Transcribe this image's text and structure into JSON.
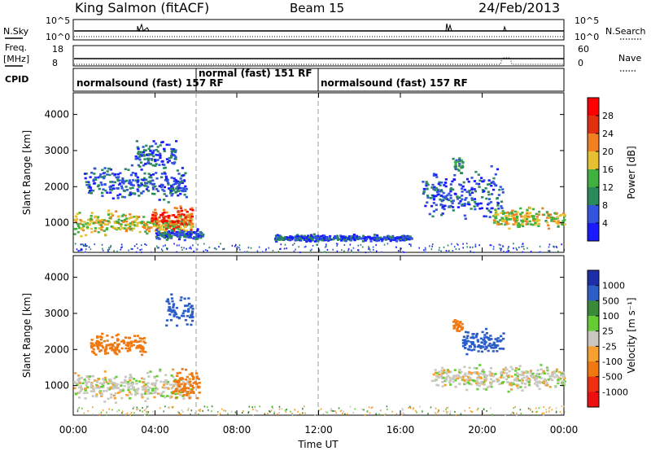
{
  "header": {
    "station": "King Salmon (fitACF)",
    "beam": "Beam 15",
    "date": "24/Feb/2013"
  },
  "side_labels": {
    "nsky": "N.Sky",
    "freq_line1": "Freq.",
    "freq_line2": "[MHz]",
    "cpid": "CPID",
    "nsearch": "N.Search",
    "nave": "Nave"
  },
  "mini_panels": {
    "noise_ticks_left": [
      "10^5",
      "10^0"
    ],
    "noise_ticks_right": [
      "10^5",
      "10^0"
    ],
    "freq_ticks": [
      "18",
      "8"
    ],
    "nave_ticks": [
      "60",
      "0"
    ],
    "cpid_segments": [
      {
        "label": "normalsound (fast) 157 RF",
        "start_h": 0,
        "end_h": 6.0
      },
      {
        "label": "normal (fast) 151 RF",
        "start_h": 6.0,
        "end_h": 12.0
      },
      {
        "label": "normalsound (fast) 157 RF",
        "start_h": 12.0,
        "end_h": 24.0
      }
    ]
  },
  "axes": {
    "ylabel": "Slant Range [km]",
    "yticks": [
      "1000",
      "2000",
      "3000",
      "4000"
    ],
    "xlabel": "Time UT",
    "xticks": [
      "00:00",
      "04:00",
      "08:00",
      "12:00",
      "16:00",
      "20:00",
      "00:00"
    ]
  },
  "colorbars": {
    "power": {
      "label": "Power [dB]",
      "ticks": [
        "4",
        "8",
        "12",
        "16",
        "20",
        "24",
        "28"
      ],
      "colors": [
        "#1a1aff",
        "#3355dd",
        "#2a8a5a",
        "#40b040",
        "#e6c030",
        "#f08020",
        "#e03010",
        "#ff0000"
      ]
    },
    "velocity": {
      "label": "Velocity [m s⁻¹]",
      "ticks": [
        "1000",
        "500",
        "100",
        "25",
        "-25",
        "-100",
        "-500",
        "-1000"
      ],
      "colors": [
        "#1e2ea8",
        "#2c5ec8",
        "#3a8a3a",
        "#66cc33",
        "#c8c8c0",
        "#f5a030",
        "#f07810",
        "#ee3010",
        "#ee1010"
      ]
    }
  },
  "chart_data": [
    {
      "type": "heatmap",
      "title": "Power [dB]",
      "xlabel": "Time UT",
      "ylabel": "Slant Range [km]",
      "xlim": [
        0,
        24
      ],
      "ylim": [
        180,
        4600
      ],
      "colorbar_range": [
        0,
        30
      ],
      "regions": [
        {
          "t_start": 0.0,
          "t_end": 5.8,
          "r_center": 1000,
          "r_width": 350,
          "power": 16
        },
        {
          "t_start": 3.8,
          "t_end": 5.8,
          "r_center": 1150,
          "r_width": 400,
          "power": 24
        },
        {
          "t_start": 0.5,
          "t_end": 5.5,
          "r_center": 2100,
          "r_width": 500,
          "power": 6
        },
        {
          "t_start": 3.0,
          "t_end": 5.0,
          "r_center": 2900,
          "r_width": 400,
          "power": 6
        },
        {
          "t_start": 4.0,
          "t_end": 6.3,
          "r_center": 700,
          "r_width": 150,
          "power": 6
        },
        {
          "t_start": 9.8,
          "t_end": 16.5,
          "r_center": 600,
          "r_width": 100,
          "power": 5
        },
        {
          "t_start": 17.0,
          "t_end": 21.0,
          "r_center": 1800,
          "r_width": 700,
          "power": 6
        },
        {
          "t_start": 18.5,
          "t_end": 19.0,
          "r_center": 2600,
          "r_width": 300,
          "power": 10
        },
        {
          "t_start": 20.5,
          "t_end": 24.0,
          "r_center": 1150,
          "r_width": 300,
          "power": 16
        }
      ]
    },
    {
      "type": "heatmap",
      "title": "Velocity [m s⁻¹]",
      "xlabel": "Time UT",
      "ylabel": "Slant Range [km]",
      "xlim": [
        0,
        24
      ],
      "ylim": [
        180,
        4600
      ],
      "colorbar_range": [
        -1000,
        1000
      ],
      "regions": [
        {
          "t_start": 0.0,
          "t_end": 5.8,
          "r_center": 1000,
          "r_width": 450,
          "velocity": 0
        },
        {
          "t_start": 4.8,
          "t_end": 6.2,
          "r_center": 1100,
          "r_width": 500,
          "velocity": -300
        },
        {
          "t_start": 0.8,
          "t_end": 3.5,
          "r_center": 2150,
          "r_width": 350,
          "velocity": -200
        },
        {
          "t_start": 4.5,
          "t_end": 5.8,
          "r_center": 3100,
          "r_width": 500,
          "velocity": 150
        },
        {
          "t_start": 17.5,
          "t_end": 24.0,
          "r_center": 1250,
          "r_width": 350,
          "velocity": 0
        },
        {
          "t_start": 18.5,
          "t_end": 19.0,
          "r_center": 2700,
          "r_width": 250,
          "velocity": -300
        },
        {
          "t_start": 19.0,
          "t_end": 21.0,
          "r_center": 2200,
          "r_width": 400,
          "velocity": 150
        }
      ]
    }
  ]
}
